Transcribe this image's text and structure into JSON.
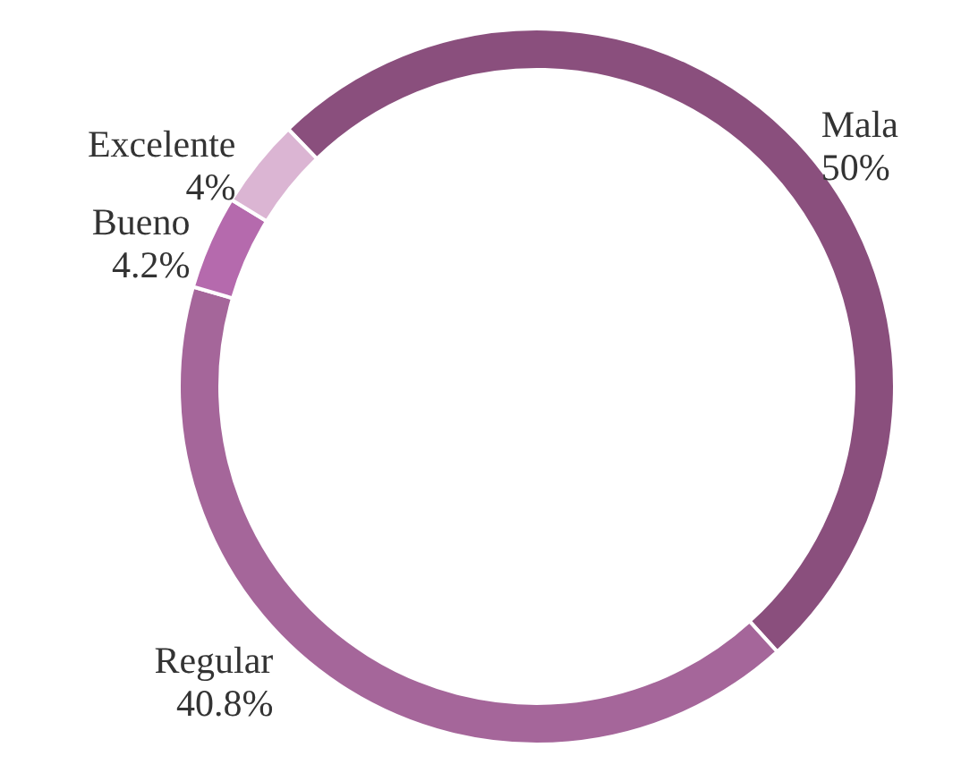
{
  "chart_data": {
    "type": "donut",
    "categories": [
      "Mala",
      "Regular",
      "Bueno",
      "Excelente"
    ],
    "values": [
      50,
      40.8,
      4.2,
      4
    ],
    "colors": [
      "#8a4f7d",
      "#a5669a",
      "#b56aad",
      "#dbb5d3"
    ],
    "value_labels": [
      "50%",
      "40.8%",
      "4.2%",
      "4%"
    ],
    "legend": false
  }
}
